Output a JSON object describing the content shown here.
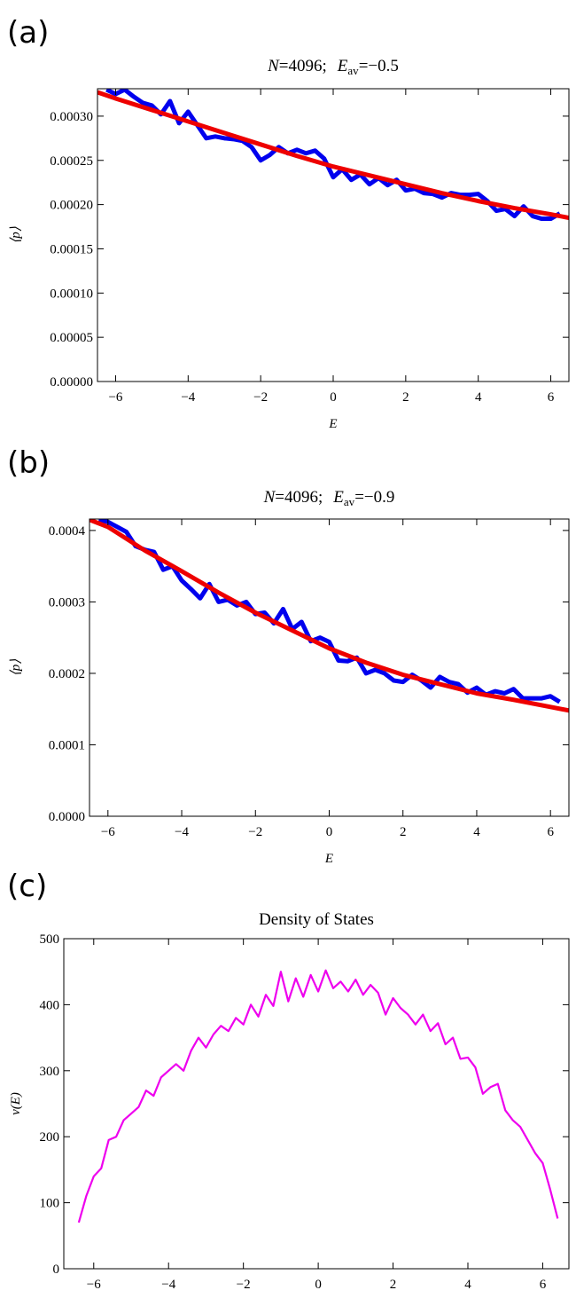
{
  "chart_data": [
    {
      "type": "line",
      "panel_label": "(a)",
      "title": [
        "N",
        "=4096;",
        "E",
        "av",
        "=−0.5"
      ],
      "x_label": "E",
      "y_label": "⟨p⟩",
      "xlim": [
        -6.5,
        6.5
      ],
      "ylim": [
        0,
        0.000331
      ],
      "xticks": [
        {
          "value": -6,
          "label": "−6"
        },
        {
          "value": -4,
          "label": "−4"
        },
        {
          "value": -2,
          "label": "−2"
        },
        0,
        2,
        4,
        6
      ],
      "yticks": [
        {
          "value": 0,
          "label": "0.00000"
        },
        {
          "value": 5e-05,
          "label": "0.00005"
        },
        {
          "value": 0.0001,
          "label": "0.00010"
        },
        {
          "value": 0.00015,
          "label": "0.00015"
        },
        {
          "value": 0.0002,
          "label": "0.00020"
        },
        {
          "value": 0.00025,
          "label": "0.00025"
        },
        {
          "value": 0.0003,
          "label": "0.00030"
        }
      ],
      "series": [
        {
          "color": "#0000ee",
          "x": [
            -6.25,
            -6,
            -5.75,
            -5.5,
            -5.25,
            -5,
            -4.75,
            -4.5,
            -4.25,
            -4,
            -3.75,
            -3.5,
            -3.25,
            -3,
            -2.75,
            -2.5,
            -2.25,
            -2,
            -1.75,
            -1.5,
            -1.25,
            -1,
            -0.75,
            -0.5,
            -0.25,
            0,
            0.25,
            0.5,
            0.75,
            1,
            1.25,
            1.5,
            1.75,
            2,
            2.25,
            2.5,
            2.75,
            3,
            3.25,
            3.5,
            3.75,
            4,
            4.25,
            4.5,
            4.75,
            5,
            5.25,
            5.5,
            5.75,
            6,
            6.25
          ],
          "values": [
            0.00033,
            0.000325,
            0.00033,
            0.000322,
            0.000315,
            0.000312,
            0.000302,
            0.000317,
            0.000292,
            0.000305,
            0.00029,
            0.000275,
            0.000277,
            0.000275,
            0.000274,
            0.000272,
            0.000265,
            0.00025,
            0.000256,
            0.000265,
            0.000258,
            0.000262,
            0.000258,
            0.000261,
            0.000252,
            0.000231,
            0.00024,
            0.000228,
            0.000234,
            0.000223,
            0.00023,
            0.000222,
            0.000228,
            0.000216,
            0.000218,
            0.000213,
            0.000212,
            0.000208,
            0.000213,
            0.000211,
            0.000211,
            0.000212,
            0.000204,
            0.000193,
            0.000195,
            0.000187,
            0.000198,
            0.000187,
            0.000184,
            0.000184,
            0.00019
          ]
        },
        {
          "color": "#ee0000",
          "x": [
            -6.5,
            -6,
            -5,
            -4,
            -3,
            -2,
            -1,
            0,
            1,
            2,
            3,
            4,
            5,
            6,
            6.5
          ],
          "values": [
            0.000327,
            0.00032,
            0.000307,
            0.000294,
            0.000281,
            0.000268,
            0.000255,
            0.000243,
            0.000233,
            0.000223,
            0.000213,
            0.000204,
            0.000196,
            0.000189,
            0.000185
          ]
        }
      ]
    },
    {
      "type": "line",
      "panel_label": "(b)",
      "title": [
        "N",
        "=4096;",
        "E",
        "av",
        "=−0.9"
      ],
      "x_label": "E",
      "y_label": "⟨p⟩",
      "xlim": [
        -6.5,
        6.5
      ],
      "ylim": [
        0,
        0.000416
      ],
      "xticks": [
        {
          "value": -6,
          "label": "−6"
        },
        {
          "value": -4,
          "label": "−4"
        },
        {
          "value": -2,
          "label": "−2"
        },
        0,
        2,
        4,
        6
      ],
      "yticks": [
        {
          "value": 0,
          "label": "0.0000"
        },
        0.0001,
        0.0002,
        0.0003,
        0.0004
      ],
      "series": [
        {
          "color": "#0000ee",
          "x": [
            -6.25,
            -6,
            -5.75,
            -5.5,
            -5.25,
            -5,
            -4.75,
            -4.5,
            -4.25,
            -4,
            -3.75,
            -3.5,
            -3.25,
            -3,
            -2.75,
            -2.5,
            -2.25,
            -2,
            -1.75,
            -1.5,
            -1.25,
            -1,
            -0.75,
            -0.5,
            -0.25,
            0,
            0.25,
            0.5,
            0.75,
            1,
            1.25,
            1.5,
            1.75,
            2,
            2.25,
            2.5,
            2.75,
            3,
            3.25,
            3.5,
            3.75,
            4,
            4.25,
            4.5,
            4.75,
            5,
            5.25,
            5.5,
            5.75,
            6,
            6.25
          ],
          "values": [
            0.000415,
            0.000412,
            0.000405,
            0.000398,
            0.000378,
            0.000373,
            0.00037,
            0.000345,
            0.00035,
            0.00033,
            0.000318,
            0.000305,
            0.000325,
            0.0003,
            0.000303,
            0.000295,
            0.0003,
            0.000283,
            0.000285,
            0.00027,
            0.00029,
            0.000262,
            0.000272,
            0.000245,
            0.00025,
            0.000244,
            0.000218,
            0.000217,
            0.000222,
            0.0002,
            0.000205,
            0.0002,
            0.00019,
            0.000188,
            0.000198,
            0.00019,
            0.00018,
            0.000195,
            0.000188,
            0.000185,
            0.000173,
            0.00018,
            0.00017,
            0.000175,
            0.000172,
            0.000178,
            0.000165,
            0.000165,
            0.000165,
            0.000168,
            0.00016
          ]
        },
        {
          "color": "#ee0000",
          "x": [
            -6.5,
            -6,
            -5,
            -4,
            -3,
            -2,
            -1,
            0,
            1,
            2,
            3,
            4,
            5,
            6,
            6.5
          ],
          "values": [
            0.000415,
            0.000405,
            0.000372,
            0.000343,
            0.000313,
            0.000285,
            0.00026,
            0.000235,
            0.000215,
            0.000198,
            0.000185,
            0.000172,
            0.000163,
            0.000153,
            0.000148
          ]
        }
      ]
    },
    {
      "type": "line",
      "panel_label": "(c)",
      "title": [
        "Density of States"
      ],
      "x_label": "E",
      "y_label": "ν(E)",
      "xlim": [
        -6.8,
        6.7
      ],
      "ylim": [
        0,
        500
      ],
      "xticks": [
        {
          "value": -6,
          "label": "−6"
        },
        {
          "value": -4,
          "label": "−4"
        },
        {
          "value": -2,
          "label": "−2"
        },
        0,
        2,
        4,
        6
      ],
      "yticks": [
        0,
        100,
        200,
        300,
        400,
        500
      ],
      "series": [
        {
          "color": "#ee00ee",
          "x": [
            -6.4,
            -6.2,
            -6,
            -5.8,
            -5.6,
            -5.4,
            -5.2,
            -5,
            -4.8,
            -4.6,
            -4.4,
            -4.2,
            -4,
            -3.8,
            -3.6,
            -3.4,
            -3.2,
            -3,
            -2.8,
            -2.6,
            -2.4,
            -2.2,
            -2,
            -1.8,
            -1.6,
            -1.4,
            -1.2,
            -1,
            -0.8,
            -0.6,
            -0.4,
            -0.2,
            0,
            0.2,
            0.4,
            0.6,
            0.8,
            1,
            1.2,
            1.4,
            1.6,
            1.8,
            2,
            2.2,
            2.4,
            2.6,
            2.8,
            3,
            3.2,
            3.4,
            3.6,
            3.8,
            4,
            4.2,
            4.4,
            4.6,
            4.8,
            5,
            5.2,
            5.4,
            5.6,
            5.8,
            6,
            6.2,
            6.4
          ],
          "values": [
            70,
            110,
            140,
            152,
            195,
            200,
            225,
            235,
            245,
            270,
            262,
            290,
            300,
            310,
            300,
            330,
            350,
            335,
            355,
            368,
            360,
            380,
            370,
            400,
            382,
            415,
            398,
            450,
            405,
            440,
            412,
            445,
            420,
            452,
            425,
            435,
            420,
            438,
            415,
            430,
            418,
            385,
            410,
            395,
            385,
            370,
            385,
            360,
            372,
            340,
            350,
            318,
            320,
            305,
            265,
            275,
            280,
            240,
            225,
            215,
            195,
            175,
            160,
            120,
            76
          ]
        }
      ]
    }
  ]
}
